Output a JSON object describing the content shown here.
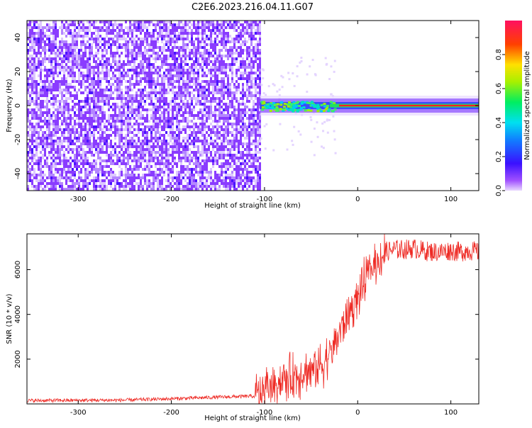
{
  "title": "C2E6.2023.216.04.11.G07",
  "colors": {
    "spectrogram_noise": "#7a2cff",
    "spectrogram_light": "#e6d4ff",
    "snr_line": "#ee2a24",
    "axis": "#000000"
  },
  "chart_data": [
    {
      "type": "heatmap",
      "title": "C2E6.2023.216.04.11.G07",
      "xlabel": "Height of straight line (km)",
      "ylabel": "Frequency (Hz)",
      "xlim": [
        -355,
        130
      ],
      "ylim": [
        -50,
        50
      ],
      "x_ticks": [
        -300,
        -200,
        -100,
        0,
        100
      ],
      "y_ticks": [
        -40,
        -20,
        0,
        20,
        40
      ],
      "colorbar": {
        "label": "Normalized spectral amplitude",
        "range": [
          0.0,
          1.0
        ],
        "ticks": [
          0.0,
          0.2,
          0.4,
          0.6,
          0.8
        ],
        "colormap": "rainbow (purple-blue-cyan-green-yellow-red-magenta)"
      },
      "features": [
        {
          "name": "broadband noise",
          "x_range": [
            -355,
            -105
          ],
          "amplitude": 0.05
        },
        {
          "name": "signal line",
          "x_range": [
            -105,
            130
          ],
          "frequency_hz": 0,
          "amplitude_range": [
            0.35,
            0.9
          ]
        }
      ]
    },
    {
      "type": "line",
      "xlabel": "Height of straight line (km)",
      "ylabel": "SNR (10 * v/v)",
      "xlim": [
        -355,
        130
      ],
      "ylim": [
        0,
        7600
      ],
      "x_ticks": [
        -300,
        -200,
        -100,
        0,
        100
      ],
      "y_ticks": [
        2000,
        4000,
        6000
      ],
      "series": [
        {
          "x": [
            -355,
            -300,
            -250,
            -200,
            -150,
            -110,
            -100,
            -90,
            -80,
            -70,
            -60,
            -50,
            -40,
            -30,
            -25,
            -20,
            -15,
            -10,
            -5,
            0,
            5,
            10,
            20,
            30,
            40,
            50,
            60,
            70,
            80,
            90,
            100,
            110,
            120,
            130
          ],
          "y": [
            150,
            160,
            170,
            230,
            300,
            350,
            600,
            900,
            1100,
            1200,
            1400,
            1500,
            1700,
            2200,
            2700,
            3200,
            3600,
            4000,
            4400,
            4800,
            5200,
            5700,
            6300,
            6800,
            6900,
            6900,
            6950,
            6850,
            6800,
            6800,
            6850,
            6800,
            6850,
            6800
          ]
        }
      ]
    }
  ]
}
